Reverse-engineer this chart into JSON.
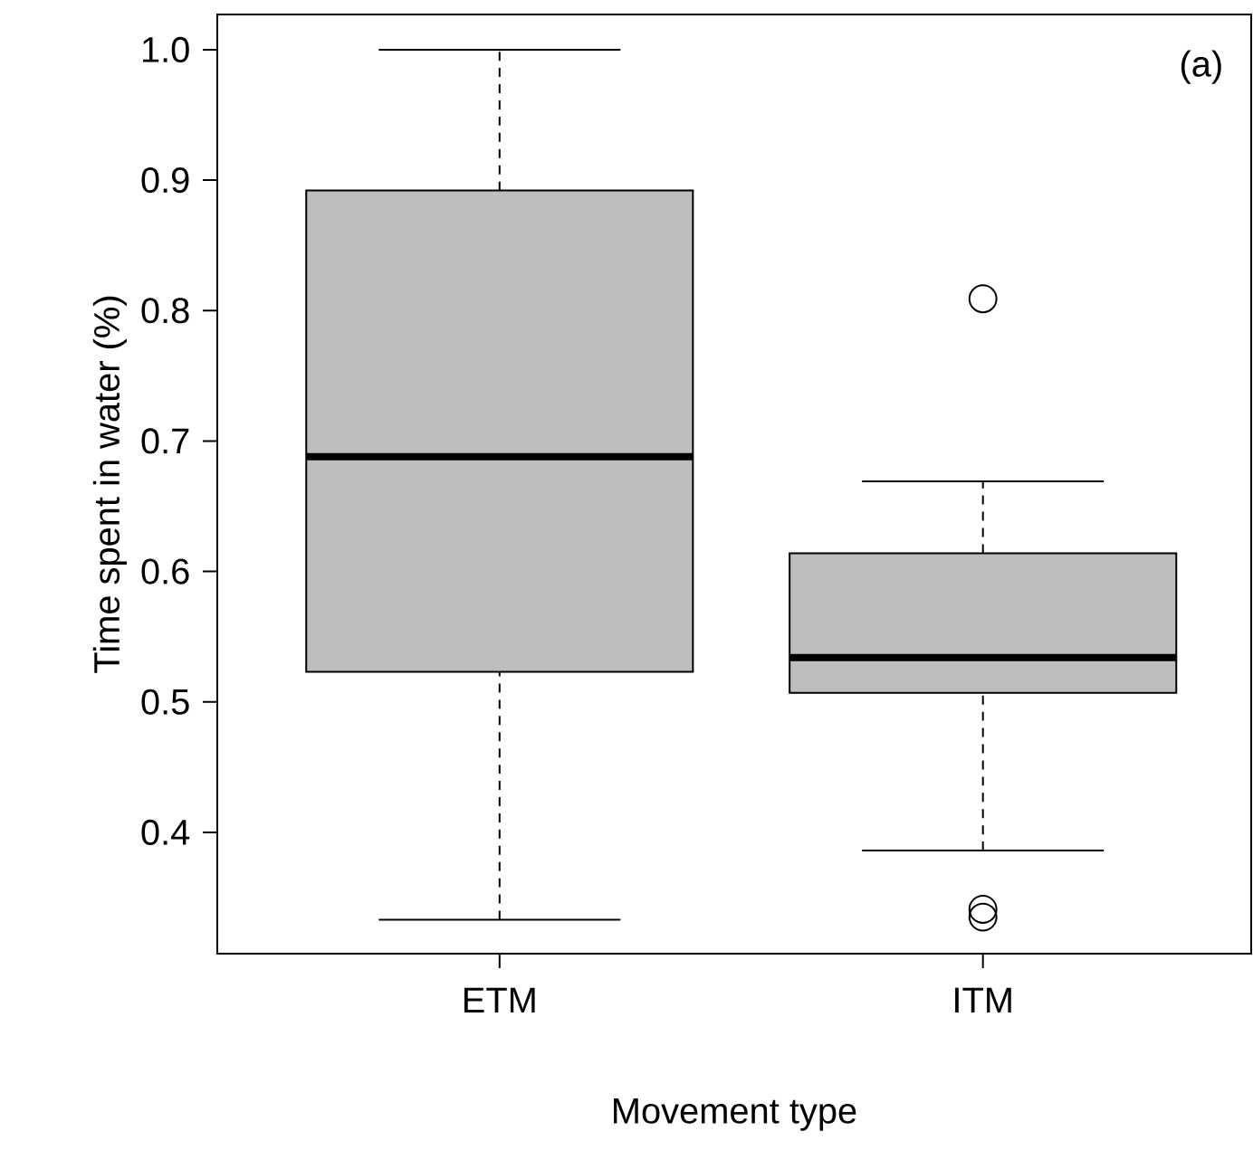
{
  "chart_data": {
    "type": "box",
    "xlabel": "Movement type",
    "ylabel": "Time spent in water (%)",
    "categories": [
      "ETM",
      "ITM"
    ],
    "color": "#bebebe",
    "boxes": [
      {
        "low": 0.333,
        "q1": 0.523,
        "median": 0.688,
        "q3": 0.892,
        "high": 1.0
      },
      {
        "low": 0.386,
        "q1": 0.507,
        "median": 0.534,
        "q3": 0.614,
        "high": 0.669,
        "outliers": [
          0.809,
          0.341,
          0.335
        ]
      }
    ],
    "ylim": [
      0.307,
      1.027
    ],
    "yticks": [
      0.4,
      0.5,
      0.6,
      0.7,
      0.8,
      0.9,
      {
        "value": 1.0,
        "label": "1.0"
      }
    ],
    "annotations": [
      "(a)"
    ]
  }
}
